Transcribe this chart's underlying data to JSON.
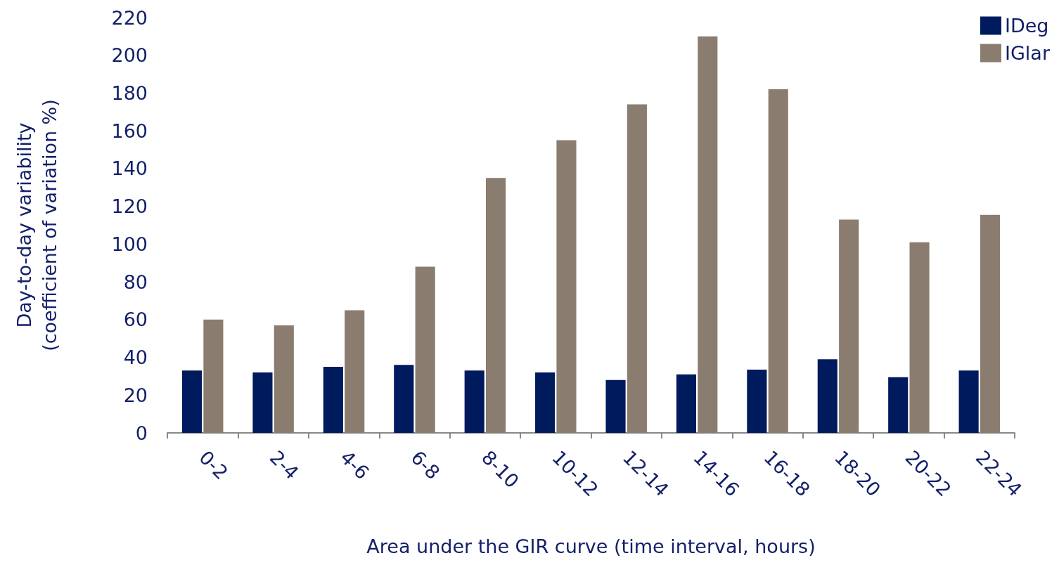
{
  "chart_data": {
    "type": "bar",
    "xlabel": "Area under the GIR curve (time interval, hours)",
    "ylabel": "Day-to-day variability\n(coefficient of variation %)",
    "categories": [
      "0-2",
      "2-4",
      "4-6",
      "6-8",
      "8-10",
      "10-12",
      "12-14",
      "14-16",
      "16-18",
      "18-20",
      "20-22",
      "22-24"
    ],
    "series": [
      {
        "name": "IDeg",
        "color": "#001a5e",
        "values": [
          33,
          32,
          35,
          36,
          33,
          32,
          28,
          31,
          33.5,
          39,
          29.5,
          33
        ]
      },
      {
        "name": "IGlar",
        "color": "#8a7d6f",
        "values": [
          60,
          57,
          65,
          88,
          135,
          155,
          174,
          210,
          182,
          113,
          101,
          115.5
        ]
      }
    ],
    "ylim": [
      0,
      220
    ],
    "yticks": [
      0,
      20,
      40,
      60,
      80,
      100,
      120,
      140,
      160,
      180,
      200,
      220
    ],
    "grid": false,
    "legend": "top right"
  }
}
